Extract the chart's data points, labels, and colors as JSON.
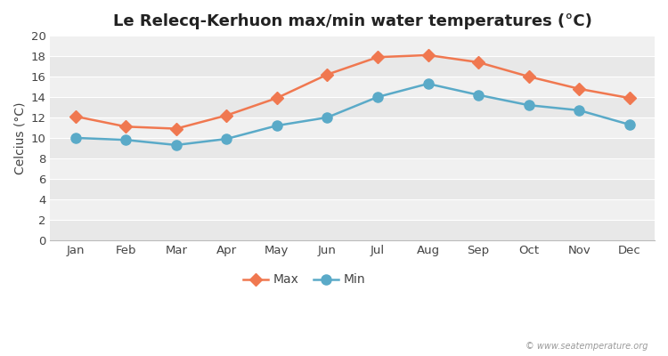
{
  "title": "Le Relecq-Kerhuon max/min water temperatures (°C)",
  "ylabel": "Celcius (°C)",
  "months": [
    "Jan",
    "Feb",
    "Mar",
    "Apr",
    "May",
    "Jun",
    "Jul",
    "Aug",
    "Sep",
    "Oct",
    "Nov",
    "Dec"
  ],
  "max_values": [
    12.1,
    11.1,
    10.9,
    12.2,
    13.9,
    16.2,
    17.9,
    18.1,
    17.4,
    16.0,
    14.8,
    13.9
  ],
  "min_values": [
    10.0,
    9.8,
    9.3,
    9.9,
    11.2,
    12.0,
    14.0,
    15.3,
    14.2,
    13.2,
    12.7,
    11.3
  ],
  "max_color": "#f07850",
  "min_color": "#5aaac8",
  "band_colors": [
    "#e8e8e8",
    "#f0f0f0"
  ],
  "ylim": [
    0,
    20
  ],
  "yticks": [
    0,
    2,
    4,
    6,
    8,
    10,
    12,
    14,
    16,
    18,
    20
  ],
  "watermark": "© www.seatemperature.org",
  "legend_max": "Max",
  "legend_min": "Min",
  "title_fontsize": 13,
  "label_fontsize": 10,
  "tick_fontsize": 9.5,
  "legend_fontsize": 10,
  "max_marker": "D",
  "min_marker": "o",
  "linewidth": 1.8,
  "max_markersize": 7,
  "min_markersize": 8
}
